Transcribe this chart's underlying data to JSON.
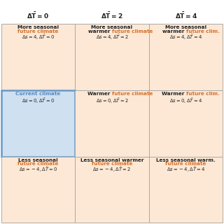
{
  "col_headers": [
    "\\Delta\\bar{T} = 0",
    "\\Delta\\bar{T} = 2",
    "\\Delta\\bar{T} = 4"
  ],
  "cells": [
    [
      {
        "line1": "More seasonal",
        "line2": "future climate",
        "line2_orange": true,
        "line3": "\\Delta s = 4, \\Delta\\bar{T} = 0",
        "ds": 4,
        "dT": 0,
        "current": false
      },
      {
        "line1": "More seasonal",
        "line2": "warmer future climate",
        "line2_mixed": true,
        "line2_black": "warmer ",
        "line2_orange_text": "future climate",
        "line3": "\\Delta s = 4, \\Delta\\bar{T} = 2",
        "ds": 4,
        "dT": 2,
        "current": false
      },
      {
        "line1": "More seasonal",
        "line2": "warmer future clim.",
        "line2_mixed": true,
        "line2_black": "warmer ",
        "line2_orange_text": "future clim.",
        "line3": "\\Delta s = 4, \\Delta\\bar{T} = 4",
        "ds": 4,
        "dT": 4,
        "current": false
      }
    ],
    [
      {
        "line1": "Current climate",
        "line1_blue": true,
        "line2": "\\Delta s = 0, \\Delta\\bar{T} = 0",
        "line3": "",
        "ds": 0,
        "dT": 0,
        "current": true
      },
      {
        "line1": "Warmer future climate",
        "line1_mixed": true,
        "line1_black": "Warmer ",
        "line1_orange": "future climate",
        "line2": "\\Delta s = 0, \\Delta\\bar{T} = 2",
        "line3": "",
        "ds": 0,
        "dT": 2,
        "current": false
      },
      {
        "line1": "Warmer future clim.",
        "line1_mixed": true,
        "line1_black": "Warmer ",
        "line1_orange": "future clim.",
        "line2": "\\Delta s = 0, \\Delta\\bar{T} = 4",
        "line3": "",
        "ds": 0,
        "dT": 4,
        "current": false
      }
    ],
    [
      {
        "line1": "Less seasonal",
        "line2": "future climate",
        "line2_orange": true,
        "line3": "\\Delta s = -4, \\Delta\\bar{T} = 0",
        "ds": -4,
        "dT": 0,
        "current": false
      },
      {
        "line1": "Less seasonal warmer",
        "line2": "future climate",
        "line2_orange": true,
        "line3": "\\Delta s = -4, \\Delta\\bar{T} = 2",
        "ds": -4,
        "dT": 2,
        "current": false
      },
      {
        "line1": "Less seasonal warm.",
        "line2": "future climate",
        "line2_orange": true,
        "line3": "\\Delta s = -4, \\Delta\\bar{T} = 4",
        "ds": -4,
        "dT": 4,
        "current": false
      }
    ]
  ],
  "bg_peach": "#fce8d5",
  "bg_blue": "#cfe0f0",
  "border_gray": "#aaaaaa",
  "border_blue": "#6699cc",
  "blue_line": "#5a85bb",
  "orange_line": "#c87040",
  "orange_text": "#d4702a",
  "blue_text": "#5588bb",
  "black_text": "#222222",
  "white": "#ffffff"
}
